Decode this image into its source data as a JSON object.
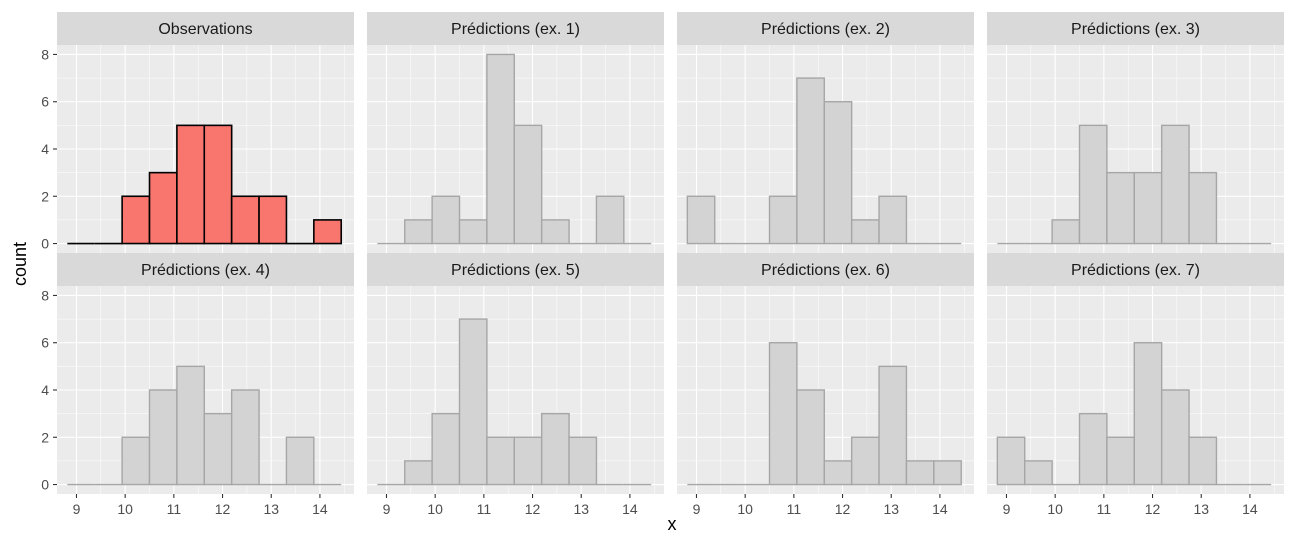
{
  "chart_data": {
    "type": "bar",
    "xlabel": "x",
    "ylabel": "count",
    "xlim": [
      8.6,
      14.7
    ],
    "ylim": [
      -0.4,
      8.4
    ],
    "x_ticks": [
      9,
      10,
      11,
      12,
      13,
      14
    ],
    "y_ticks": [
      0,
      2,
      4,
      6,
      8
    ],
    "bin_width": 0.5625,
    "bin_left_edges": [
      8.8125,
      9.375,
      9.9375,
      10.5,
      11.0625,
      11.625,
      12.1875,
      12.75,
      13.3125,
      13.875
    ],
    "colors": {
      "observed_fill": "#f8766d",
      "observed_stroke": "#000000",
      "predicted_fill": "#d3d3d3",
      "predicted_stroke": "#a6a6a6"
    },
    "panels": [
      {
        "title": "Observations",
        "observed": true,
        "counts": [
          0,
          0,
          2,
          3,
          5,
          5,
          2,
          2,
          0,
          1
        ]
      },
      {
        "title": "Prédictions (ex. 1)",
        "observed": false,
        "counts": [
          0,
          1,
          2,
          1,
          8,
          5,
          1,
          0,
          2,
          0
        ]
      },
      {
        "title": "Prédictions (ex. 2)",
        "observed": false,
        "counts": [
          2,
          0,
          0,
          2,
          7,
          6,
          1,
          2,
          0,
          0
        ]
      },
      {
        "title": "Prédictions (ex. 3)",
        "observed": false,
        "counts": [
          0,
          0,
          1,
          5,
          3,
          3,
          5,
          3,
          0,
          0
        ]
      },
      {
        "title": "Prédictions (ex. 4)",
        "observed": false,
        "counts": [
          0,
          0,
          2,
          4,
          5,
          3,
          4,
          0,
          2,
          0
        ]
      },
      {
        "title": "Prédictions (ex. 5)",
        "observed": false,
        "counts": [
          0,
          1,
          3,
          7,
          2,
          2,
          3,
          2,
          0,
          0
        ]
      },
      {
        "title": "Prédictions (ex. 6)",
        "observed": false,
        "counts": [
          0,
          0,
          0,
          6,
          4,
          1,
          2,
          5,
          1,
          1
        ]
      },
      {
        "title": "Prédictions (ex. 7)",
        "observed": false,
        "counts": [
          2,
          1,
          0,
          3,
          2,
          6,
          4,
          2,
          0,
          0
        ]
      }
    ]
  }
}
